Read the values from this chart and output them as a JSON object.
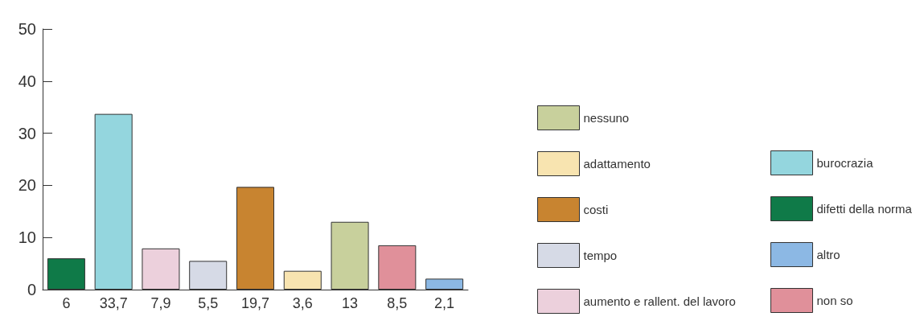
{
  "chart_data": {
    "type": "bar",
    "categories": [
      "6",
      "33,7",
      "7,9",
      "5,5",
      "19,7",
      "3,6",
      "13",
      "8,5",
      "2,1"
    ],
    "ylim": [
      0,
      50
    ],
    "yticks": [
      0,
      10,
      20,
      30,
      40,
      50
    ],
    "grid": false,
    "legend": "right",
    "stacked": true,
    "series": [
      {
        "name": "nessuno",
        "color": "#c8d09c",
        "values": [
          null,
          null,
          null,
          null,
          null,
          null,
          13,
          null,
          null
        ]
      },
      {
        "name": "adattamento",
        "color": "#f8e4b0",
        "values": [
          null,
          null,
          null,
          null,
          null,
          3.6,
          null,
          null,
          null
        ]
      },
      {
        "name": "costi",
        "color": "#c88430",
        "values": [
          null,
          null,
          null,
          null,
          19.7,
          null,
          null,
          null,
          null
        ]
      },
      {
        "name": "tempo",
        "color": "#d6dae6",
        "values": [
          null,
          null,
          null,
          5.5,
          null,
          null,
          null,
          null,
          null
        ]
      },
      {
        "name": "aumento e rallent. del lavoro",
        "color": "#ecd0dc",
        "values": [
          null,
          null,
          7.9,
          null,
          null,
          null,
          null,
          null,
          null
        ]
      },
      {
        "name": "burocrazia",
        "color": "#94d6de",
        "values": [
          null,
          33.7,
          null,
          null,
          null,
          null,
          null,
          null,
          null
        ]
      },
      {
        "name": "difetti della norma",
        "color": "#0f7a48",
        "values": [
          6,
          null,
          null,
          null,
          null,
          null,
          null,
          null,
          null
        ]
      },
      {
        "name": "altro",
        "color": "#8cb8e4",
        "values": [
          null,
          null,
          null,
          null,
          null,
          null,
          null,
          null,
          2.1
        ]
      },
      {
        "name": "non so",
        "color": "#e0909a",
        "values": [
          null,
          null,
          null,
          null,
          null,
          null,
          null,
          8.5,
          null
        ]
      }
    ]
  }
}
